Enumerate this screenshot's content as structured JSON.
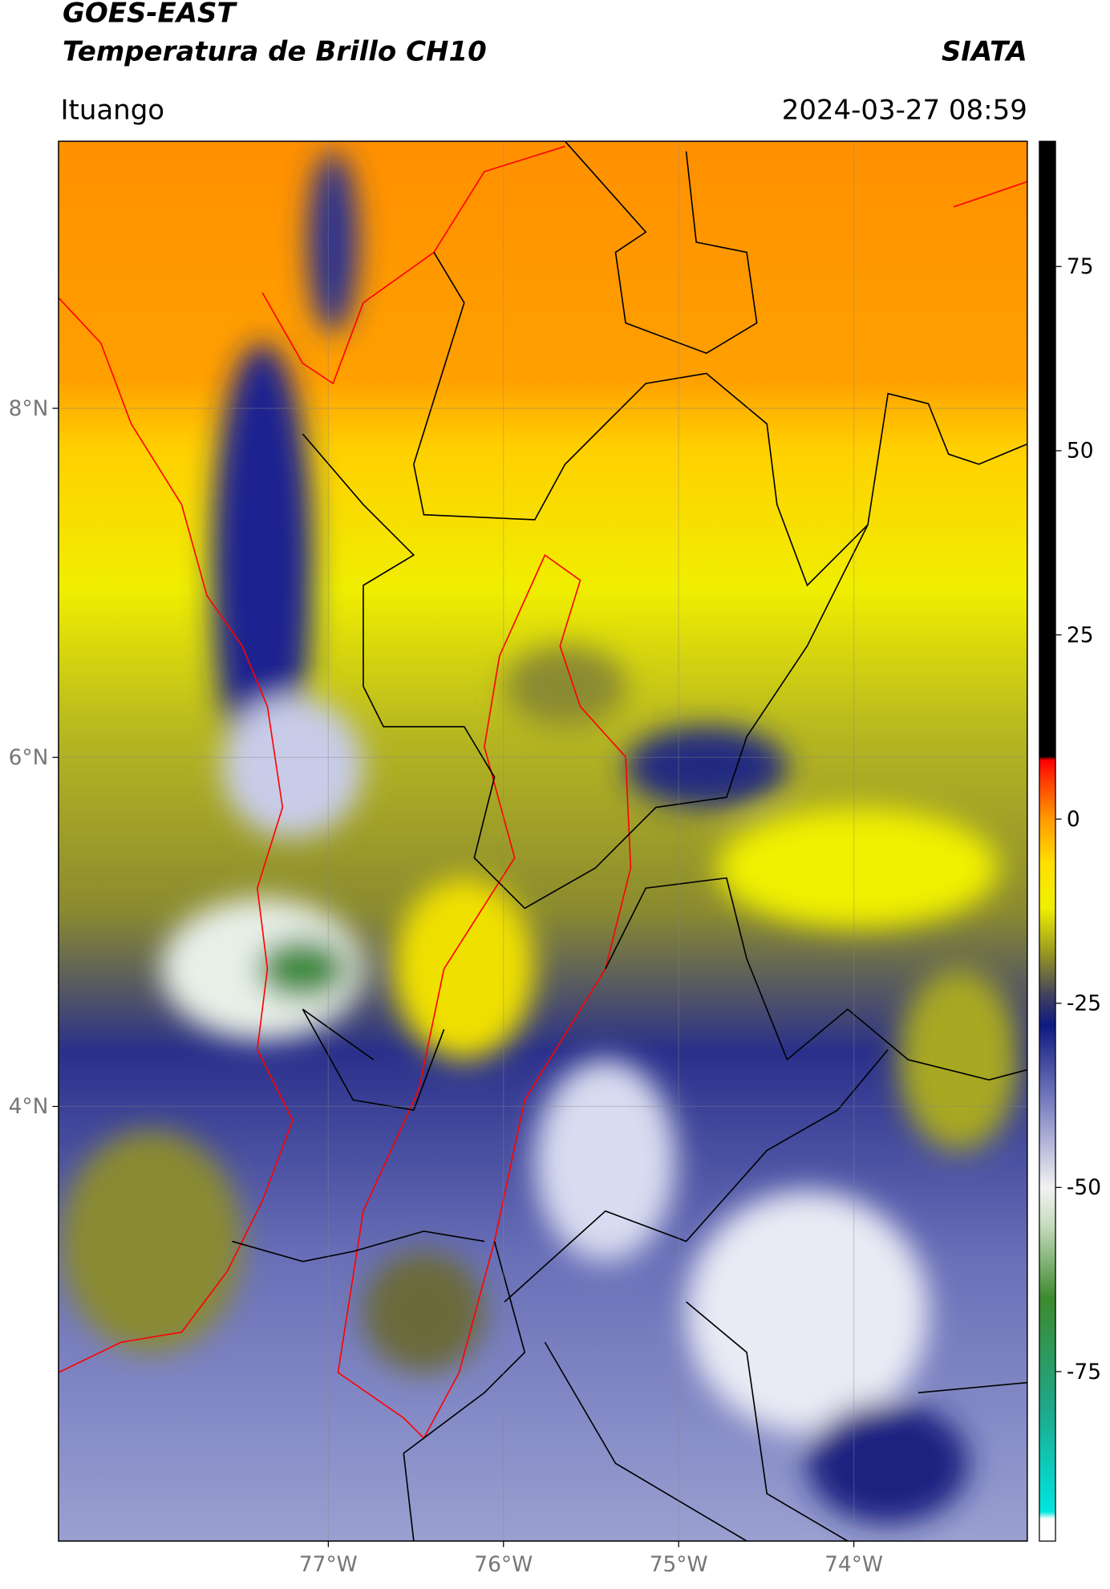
{
  "header": {
    "title": "GOES-EAST",
    "subtitle": "Temperatura de Brillo CH10",
    "organization": "SIATA",
    "location": "Ituango",
    "datetime": "2024-03-27 08:59"
  },
  "map": {
    "lat_lim": [
      1.51,
      9.53
    ],
    "lon_lim": [
      -78.54,
      -73.01
    ],
    "lat_ticks": [
      {
        "value": 8,
        "label": "8°N"
      },
      {
        "value": 6,
        "label": "6°N"
      },
      {
        "value": 4,
        "label": "4°N"
      }
    ],
    "lon_ticks": [
      {
        "value": -77,
        "label": "77°W"
      },
      {
        "value": -76,
        "label": "76°W"
      },
      {
        "value": -75,
        "label": "75°W"
      },
      {
        "value": -74,
        "label": "74°W"
      }
    ]
  },
  "colorbar": {
    "lim": [
      -98,
      92
    ],
    "ticks": [
      75,
      50,
      25,
      0,
      -25,
      -50,
      -75
    ],
    "colormap": [
      {
        "value": -98,
        "color": "#ffffff"
      },
      {
        "value": -95,
        "color": "#ffffff"
      },
      {
        "value": -94,
        "color": "#00e5e0"
      },
      {
        "value": -80,
        "color": "#1ea88a"
      },
      {
        "value": -65,
        "color": "#3d8a2e"
      },
      {
        "value": -55,
        "color": "#c8dcc0"
      },
      {
        "value": -50,
        "color": "#f2f2f2"
      },
      {
        "value": -40,
        "color": "#8a8ec8"
      },
      {
        "value": -28,
        "color": "#0f1a80"
      },
      {
        "value": -24,
        "color": "#404060"
      },
      {
        "value": -18,
        "color": "#9a9a20"
      },
      {
        "value": -12,
        "color": "#f0f000"
      },
      {
        "value": -6,
        "color": "#ffe000"
      },
      {
        "value": 0,
        "color": "#ff9a00"
      },
      {
        "value": 5,
        "color": "#ff4000"
      },
      {
        "value": 8,
        "color": "#ff0000"
      },
      {
        "value": 8.5,
        "color": "#000000"
      },
      {
        "value": 92,
        "color": "#000000"
      }
    ]
  }
}
